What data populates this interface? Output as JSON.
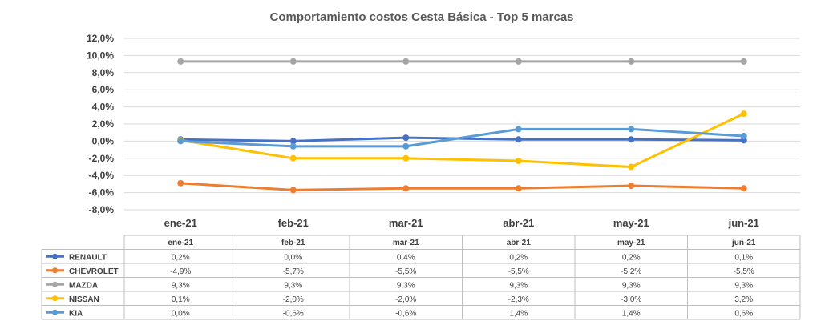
{
  "chart_data": {
    "type": "line",
    "title": "Comportamiento costos Cesta Básica - Top 5 marcas",
    "categories": [
      "ene-21",
      "feb-21",
      "mar-21",
      "abr-21",
      "may-21",
      "jun-21"
    ],
    "ylim": [
      -8,
      12
    ],
    "yticks": [
      "12,0%",
      "10,0%",
      "8,0%",
      "6,0%",
      "4,0%",
      "2,0%",
      "0,0%",
      "-2,0%",
      "-4,0%",
      "-6,0%",
      "-8,0%"
    ],
    "grid": true,
    "legend": "data-table",
    "series": [
      {
        "name": "RENAULT",
        "color": "#4472c4",
        "values": [
          0.2,
          0.0,
          0.4,
          0.2,
          0.2,
          0.1
        ],
        "labels": [
          "0,2%",
          "0,0%",
          "0,4%",
          "0,2%",
          "0,2%",
          "0,1%"
        ]
      },
      {
        "name": "CHEVROLET",
        "color": "#ed7d31",
        "values": [
          -4.9,
          -5.7,
          -5.5,
          -5.5,
          -5.2,
          -5.5
        ],
        "labels": [
          "-4,9%",
          "-5,7%",
          "-5,5%",
          "-5,5%",
          "-5,2%",
          "-5,5%"
        ]
      },
      {
        "name": "MAZDA",
        "color": "#a5a5a5",
        "values": [
          9.3,
          9.3,
          9.3,
          9.3,
          9.3,
          9.3
        ],
        "labels": [
          "9,3%",
          "9,3%",
          "9,3%",
          "9,3%",
          "9,3%",
          "9,3%"
        ]
      },
      {
        "name": "NISSAN",
        "color": "#ffc000",
        "values": [
          0.1,
          -2.0,
          -2.0,
          -2.3,
          -3.0,
          3.2
        ],
        "labels": [
          "0,1%",
          "-2,0%",
          "-2,0%",
          "-2,3%",
          "-3,0%",
          "3,2%"
        ]
      },
      {
        "name": "KIA",
        "color": "#5b9bd5",
        "values": [
          0.0,
          -0.6,
          -0.6,
          1.4,
          1.4,
          0.6
        ],
        "labels": [
          "0,0%",
          "-0,6%",
          "-0,6%",
          "1,4%",
          "1,4%",
          "0,6%"
        ]
      }
    ]
  }
}
